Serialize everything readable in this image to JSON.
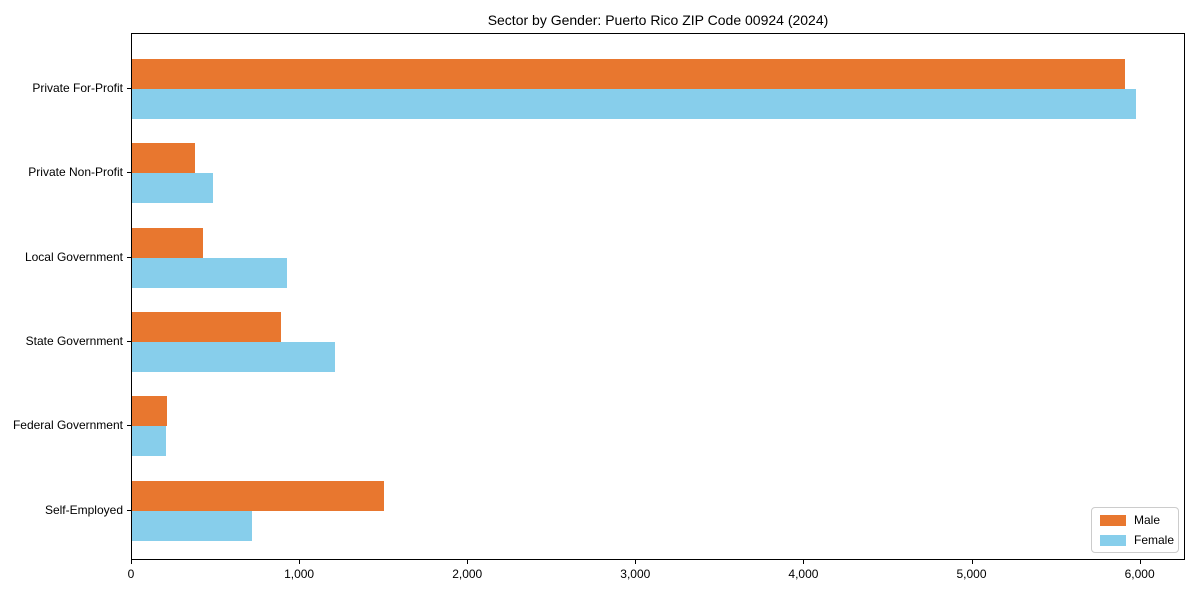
{
  "chart_data": {
    "type": "bar",
    "orientation": "horizontal",
    "title": "Sector by Gender: Puerto Rico ZIP Code 00924 (2024)",
    "categories": [
      "Private For-Profit",
      "Private Non-Profit",
      "Local Government",
      "State Government",
      "Federal Government",
      "Self-Employed"
    ],
    "series": [
      {
        "name": "Male",
        "color": "#E8772F",
        "values": [
          5910,
          375,
          425,
          885,
          210,
          1500
        ]
      },
      {
        "name": "Female",
        "color": "#87CEEB",
        "values": [
          5970,
          480,
          920,
          1210,
          200,
          715
        ]
      }
    ],
    "xlabel": "",
    "ylabel": "",
    "xlim": [
      0,
      6270
    ],
    "x_ticks": [
      0,
      1000,
      2000,
      3000,
      4000,
      5000,
      6000
    ],
    "x_tick_labels": [
      "0",
      "1,000",
      "2,000",
      "3,000",
      "4,000",
      "5,000",
      "6,000"
    ],
    "grid": false,
    "legend_position": "lower right",
    "legend_entries": [
      "Male",
      "Female"
    ]
  }
}
